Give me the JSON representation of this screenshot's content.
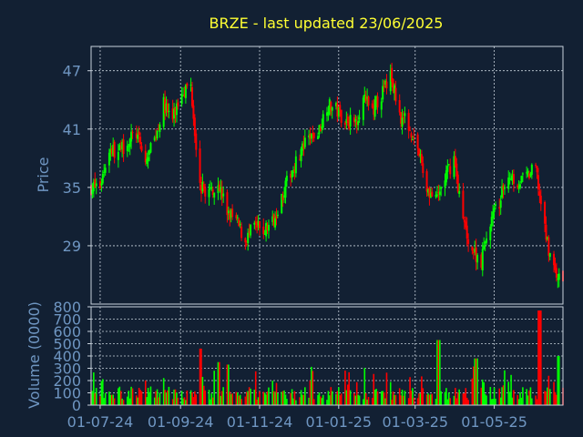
{
  "chart_data": {
    "type": "candlestick",
    "title": "BRZE - last updated 23/06/2025",
    "price_panel": {
      "ylabel": "Price",
      "yticks": [
        29,
        35,
        41,
        47
      ],
      "ylim": [
        23.0,
        49.5
      ],
      "grid": true
    },
    "volume_panel": {
      "ylabel": "Volume (0000)",
      "yticks": [
        0,
        100,
        200,
        300,
        400,
        500,
        600,
        700,
        800
      ],
      "ylim": [
        0,
        800
      ],
      "grid": true
    },
    "x_ticks": [
      "01-07-24",
      "01-09-24",
      "01-11-24",
      "01-01-25",
      "01-03-25",
      "01-05-25"
    ],
    "x_range": [
      "2024-06-24",
      "2025-06-23"
    ],
    "price_path": [
      [
        "2024-06-24",
        35.0
      ],
      [
        "2024-07-01",
        35.2
      ],
      [
        "2024-07-08",
        39.0
      ],
      [
        "2024-07-15",
        38.5
      ],
      [
        "2024-07-22",
        39.8
      ],
      [
        "2024-07-29",
        40.5
      ],
      [
        "2024-08-05",
        37.5
      ],
      [
        "2024-08-12",
        40.0
      ],
      [
        "2024-08-19",
        43.5
      ],
      [
        "2024-08-26",
        42.0
      ],
      [
        "2024-09-02",
        45.0
      ],
      [
        "2024-09-09",
        45.5
      ],
      [
        "2024-09-16",
        35.0
      ],
      [
        "2024-09-23",
        34.5
      ],
      [
        "2024-09-30",
        35.5
      ],
      [
        "2024-10-07",
        32.5
      ],
      [
        "2024-10-14",
        31.5
      ],
      [
        "2024-10-21",
        29.5
      ],
      [
        "2024-10-28",
        31.0
      ],
      [
        "2024-11-04",
        30.5
      ],
      [
        "2024-11-11",
        31.5
      ],
      [
        "2024-11-18",
        34.0
      ],
      [
        "2024-11-25",
        36.5
      ],
      [
        "2024-12-02",
        38.5
      ],
      [
        "2024-12-09",
        40.0
      ],
      [
        "2024-12-16",
        40.5
      ],
      [
        "2024-12-23",
        43.5
      ],
      [
        "2024-12-30",
        43.0
      ],
      [
        "2025-01-06",
        42.0
      ],
      [
        "2025-01-13",
        41.5
      ],
      [
        "2025-01-20",
        44.0
      ],
      [
        "2025-01-27",
        43.0
      ],
      [
        "2025-02-03",
        44.5
      ],
      [
        "2025-02-10",
        46.5
      ],
      [
        "2025-02-17",
        42.5
      ],
      [
        "2025-02-24",
        41.5
      ],
      [
        "2025-03-03",
        39.0
      ],
      [
        "2025-03-10",
        35.0
      ],
      [
        "2025-03-17",
        33.5
      ],
      [
        "2025-03-24",
        36.0
      ],
      [
        "2025-03-31",
        38.0
      ],
      [
        "2025-04-07",
        31.5
      ],
      [
        "2025-04-14",
        28.5
      ],
      [
        "2025-04-21",
        27.5
      ],
      [
        "2025-04-28",
        31.5
      ],
      [
        "2025-05-05",
        33.5
      ],
      [
        "2025-05-12",
        36.5
      ],
      [
        "2025-05-19",
        35.5
      ],
      [
        "2025-05-26",
        36.0
      ],
      [
        "2025-06-02",
        37.0
      ],
      [
        "2025-06-09",
        30.5
      ],
      [
        "2025-06-16",
        26.5
      ],
      [
        "2025-06-23",
        25.0
      ]
    ],
    "volume_spikes": [
      [
        "2024-09-16",
        460
      ],
      [
        "2024-09-30",
        350
      ],
      [
        "2024-10-07",
        330
      ],
      [
        "2025-03-19",
        530
      ],
      [
        "2025-04-17",
        380
      ],
      [
        "2025-06-05",
        770
      ],
      [
        "2025-06-20",
        400
      ]
    ],
    "up_color": "#00ff00",
    "down_color": "#ff0000",
    "title_color": "#ffff33",
    "axis_text_color": "#6f96c2",
    "background": "#122033",
    "grid_color": "#c8d2dc"
  }
}
